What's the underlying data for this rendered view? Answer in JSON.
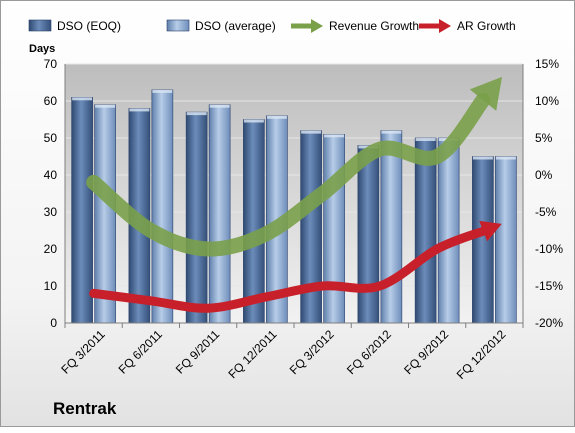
{
  "company": "Rentrak",
  "chart_data": {
    "type": "bar",
    "title": "",
    "categories": [
      "FQ 3/2011",
      "FQ 6/2011",
      "FQ 9/2011",
      "FQ 12/2011",
      "FQ 3/2012",
      "FQ 6/2012",
      "FQ 9/2012",
      "FQ 12/2012"
    ],
    "ylabel": "Days",
    "ylim": [
      0,
      70
    ],
    "y_ticks": [
      0,
      10,
      20,
      30,
      40,
      50,
      60,
      70
    ],
    "y2lim": [
      -20,
      15
    ],
    "y2_ticks": [
      "-20%",
      "-15%",
      "-10%",
      "-5%",
      "0%",
      "5%",
      "10%",
      "15%"
    ],
    "grid": true,
    "legend_position": "top",
    "series": [
      {
        "name": "DSO (EOQ)",
        "kind": "bar",
        "axis": "left",
        "color": "#4f6f9e",
        "values": [
          61,
          58,
          57,
          55,
          52,
          48,
          50,
          45
        ]
      },
      {
        "name": "DSO (average)",
        "kind": "bar",
        "axis": "left",
        "color": "#8fb0d8",
        "values": [
          59,
          63,
          59,
          56,
          51,
          52,
          50,
          45
        ]
      },
      {
        "name": "Revenue Growth",
        "kind": "arrow",
        "axis": "right",
        "color": "#7aa04a",
        "values": [
          -1,
          -7.5,
          -10,
          -8,
          -2.5,
          3.5,
          2.5,
          12
        ]
      },
      {
        "name": "AR Growth",
        "kind": "arrow",
        "axis": "right",
        "color": "#c8202a",
        "values": [
          -16,
          -17,
          -18,
          -16.5,
          -15,
          -15,
          -10,
          -7
        ]
      }
    ]
  }
}
